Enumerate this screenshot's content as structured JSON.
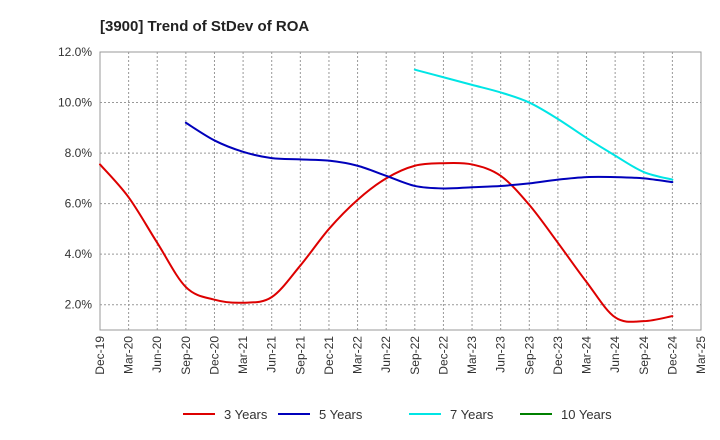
{
  "chart_data": {
    "type": "line",
    "title": "[3900]  Trend of StDev of ROA",
    "xlabel": "",
    "ylabel": "",
    "x_tick_labels": [
      "Dec-19",
      "Mar-20",
      "Jun-20",
      "Sep-20",
      "Dec-20",
      "Mar-21",
      "Jun-21",
      "Sep-21",
      "Dec-21",
      "Mar-22",
      "Jun-22",
      "Sep-22",
      "Dec-22",
      "Mar-23",
      "Jun-23",
      "Sep-23",
      "Dec-23",
      "Mar-24",
      "Jun-24",
      "Sep-24",
      "Dec-24",
      "Mar-25"
    ],
    "y_tick_labels": [
      "2.0%",
      "4.0%",
      "6.0%",
      "8.0%",
      "10.0%",
      "12.0%"
    ],
    "ylim": [
      1.0,
      12.0
    ],
    "grid": true,
    "legend_position": "bottom",
    "series": [
      {
        "name": "3 Years",
        "color": "#dd0000",
        "start_index": 0,
        "values": [
          7.55,
          6.25,
          4.45,
          2.7,
          2.2,
          2.08,
          2.3,
          3.55,
          5.0,
          6.15,
          7.0,
          7.5,
          7.6,
          7.55,
          7.1,
          5.95,
          4.45,
          2.9,
          1.5,
          1.35,
          1.55
        ]
      },
      {
        "name": "5 Years",
        "color": "#0000bb",
        "start_index": 3,
        "values": [
          9.2,
          8.5,
          8.05,
          7.8,
          7.75,
          7.7,
          7.5,
          7.1,
          6.7,
          6.6,
          6.65,
          6.7,
          6.8,
          6.95,
          7.05,
          7.05,
          7.0,
          6.85
        ]
      },
      {
        "name": "7 Years",
        "color": "#00e5e5",
        "start_index": 11,
        "values": [
          11.3,
          11.0,
          10.7,
          10.4,
          10.0,
          9.35,
          8.6,
          7.9,
          7.25,
          6.95
        ]
      },
      {
        "name": "10 Years",
        "color": "#008000",
        "start_index": 0,
        "values": []
      }
    ]
  }
}
